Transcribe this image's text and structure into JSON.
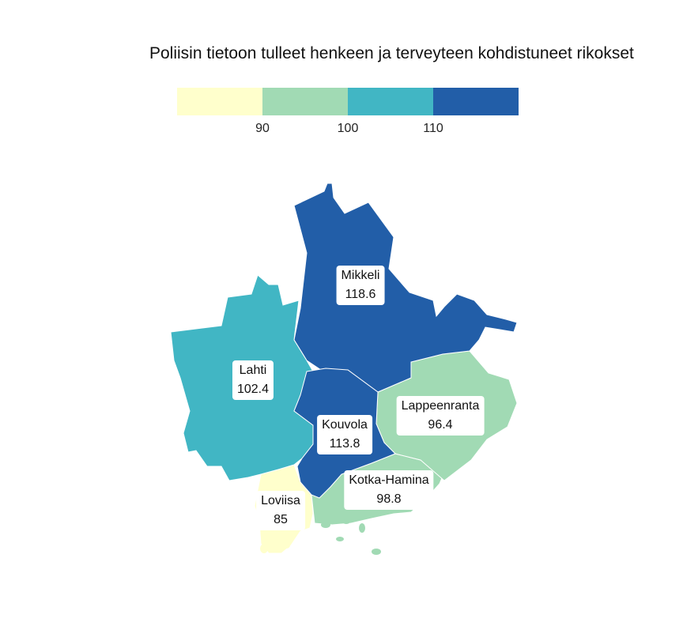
{
  "title": "Poliisin tietoon tulleet henkeen ja terveyteen kohdistuneet rikokset",
  "legend": {
    "colors": [
      "#ffffcc",
      "#a1dab4",
      "#41b6c4",
      "#225ea8"
    ],
    "ticks": [
      "90",
      "100",
      "110"
    ]
  },
  "regions": [
    {
      "name": "Mikkeli",
      "value": "118.6",
      "color": "#225ea8"
    },
    {
      "name": "Lahti",
      "value": "102.4",
      "color": "#41b6c4"
    },
    {
      "name": "Kouvola",
      "value": "113.8",
      "color": "#225ea8"
    },
    {
      "name": "Lappeenranta",
      "value": "96.4",
      "color": "#a1dab4"
    },
    {
      "name": "Kotka-Hamina",
      "value": "98.8",
      "color": "#a1dab4"
    },
    {
      "name": "Loviisa",
      "value": "85",
      "color": "#ffffcc"
    }
  ]
}
